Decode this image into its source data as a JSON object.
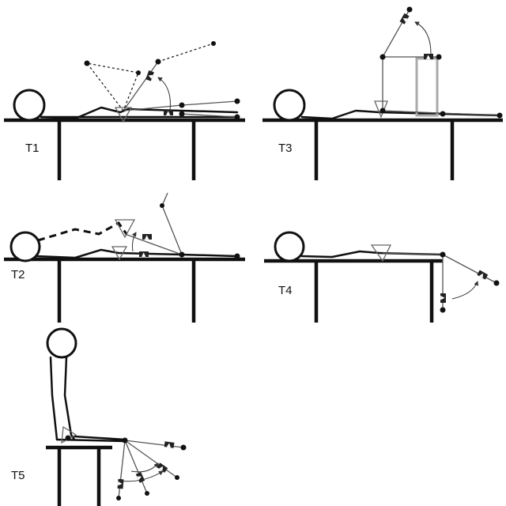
{
  "panels": [
    {
      "id": "T1",
      "label": "T1"
    },
    {
      "id": "T2",
      "label": "T2"
    },
    {
      "id": "T3",
      "label": "T3"
    },
    {
      "id": "T4",
      "label": "T4"
    },
    {
      "id": "T5",
      "label": "T5"
    }
  ],
  "sensor_mark": "▲"
}
